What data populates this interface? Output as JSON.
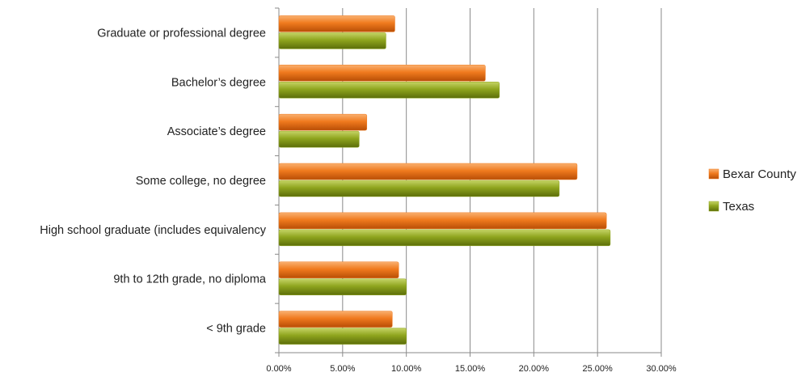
{
  "chart_data": {
    "type": "bar",
    "orientation": "horizontal",
    "categories": [
      "Graduate or professional degree",
      "Bachelor’s degree",
      "Associate’s degree",
      "Some college, no degree",
      "High school graduate (includes equivalency",
      "9th to 12th grade, no diploma",
      "< 9th grade"
    ],
    "series": [
      {
        "name": "Bexar County",
        "color": "#F07A1E",
        "values": [
          9.1,
          16.2,
          6.9,
          23.4,
          25.7,
          9.4,
          8.9
        ]
      },
      {
        "name": "Texas",
        "color": "#8FA51E",
        "values": [
          8.4,
          17.3,
          6.3,
          22.0,
          26.0,
          10.0,
          10.0
        ]
      }
    ],
    "xlim": [
      0,
      30
    ],
    "x_ticks": [
      "0.00%",
      "5.00%",
      "10.00%",
      "15.00%",
      "20.00%",
      "25.00%",
      "30.00%"
    ],
    "grid": "vertical",
    "legend_position": "right"
  }
}
